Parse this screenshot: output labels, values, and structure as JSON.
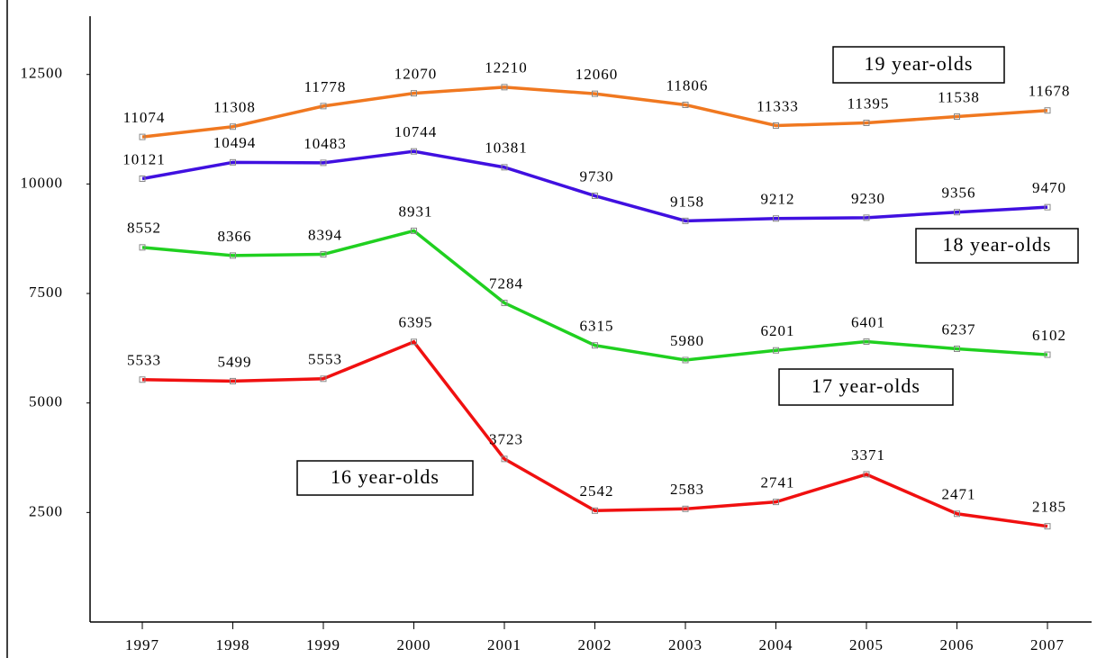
{
  "chart_data": {
    "type": "line",
    "categories": [
      "1997",
      "1998",
      "1999",
      "2000",
      "2001",
      "2002",
      "2003",
      "2004",
      "2005",
      "2006",
      "2007"
    ],
    "series": [
      {
        "name": "19 year-olds",
        "color": "#f07820",
        "values": [
          11074,
          11308,
          11778,
          12070,
          12210,
          12060,
          11806,
          11333,
          11395,
          11538,
          11678
        ]
      },
      {
        "name": "18 year-olds",
        "color": "#4010e0",
        "values": [
          10121,
          10494,
          10483,
          10744,
          10381,
          9730,
          9158,
          9212,
          9230,
          9356,
          9470
        ]
      },
      {
        "name": "17 year-olds",
        "color": "#20d020",
        "values": [
          8552,
          8366,
          8394,
          8931,
          7284,
          6315,
          5980,
          6201,
          6401,
          6237,
          6102
        ]
      },
      {
        "name": "16 year-olds",
        "color": "#f01010",
        "values": [
          5533,
          5499,
          5553,
          6395,
          3723,
          2542,
          2583,
          2741,
          3371,
          2471,
          2185
        ]
      }
    ],
    "ylim": [
      0,
      14200
    ],
    "yticks": [
      2500,
      5000,
      7500,
      10000,
      12500
    ]
  }
}
